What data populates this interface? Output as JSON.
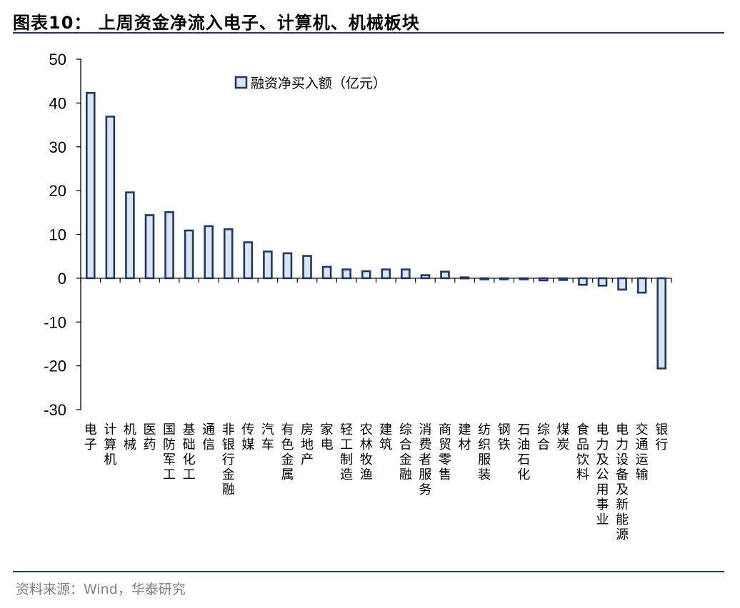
{
  "header": {
    "title": "图表10： 上周资金净流入电子、计算机、机械板块"
  },
  "footer": {
    "source": "资料来源：Wind，华泰研究"
  },
  "colors": {
    "bar_border": "#1f3864",
    "bar_fill": "#dbe5f1",
    "rule": "#1f3864"
  },
  "chart_data": {
    "type": "bar",
    "title": "",
    "xlabel": "",
    "ylabel": "",
    "ylim": [
      -30,
      50
    ],
    "yticks": [
      50,
      40,
      30,
      20,
      10,
      0,
      -10,
      -20,
      -30
    ],
    "legend": {
      "position": "top",
      "entries": [
        "融资净买入额（亿元）"
      ]
    },
    "grid": false,
    "categories": [
      "电子",
      "计算机",
      "机械",
      "医药",
      "国防军工",
      "基础化工",
      "通信",
      "非银行金融",
      "传媒",
      "汽车",
      "有色金属",
      "房地产",
      "家电",
      "轻工制造",
      "农林牧渔",
      "建筑",
      "综合金融",
      "消费者服务",
      "商贸零售",
      "建材",
      "纺织服装",
      "钢铁",
      "石油石化",
      "综合",
      "煤炭",
      "食品饮料",
      "电力及公用事业",
      "电力设备及新能源",
      "交通运输",
      "银行"
    ],
    "series": [
      {
        "name": "融资净买入额（亿元）",
        "values": [
          42.3,
          36.9,
          19.6,
          14.4,
          15.1,
          10.9,
          11.9,
          11.2,
          8.2,
          6.1,
          5.7,
          5.1,
          2.6,
          2.0,
          1.6,
          2.0,
          2.0,
          0.7,
          1.5,
          0.2,
          -0.2,
          -0.1,
          -0.1,
          -0.5,
          -0.4,
          -1.5,
          -1.7,
          -2.6,
          -3.3,
          -20.6
        ]
      }
    ]
  }
}
